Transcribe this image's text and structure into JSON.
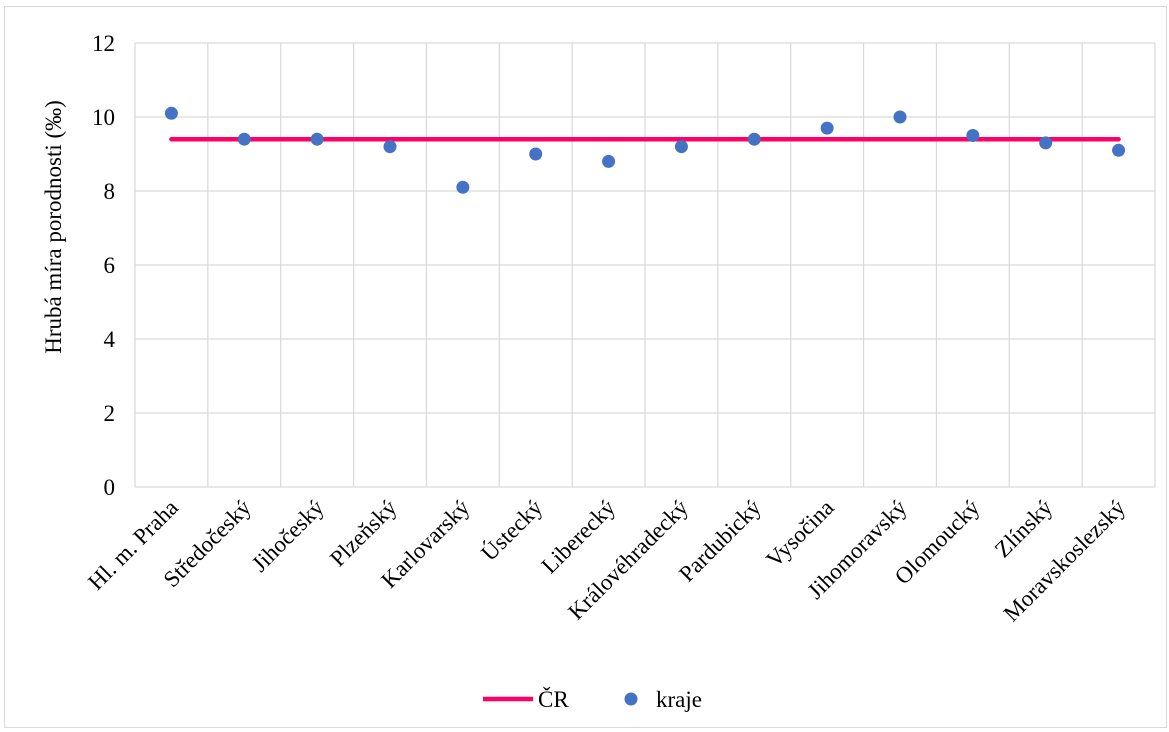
{
  "chart_data": {
    "type": "scatter",
    "categories": [
      "Hl. m. Praha",
      "Středočeský",
      "Jihočeský",
      "Plzeňský",
      "Karlovarský",
      "Ústecký",
      "Liberecký",
      "Královéhradecký",
      "Pardubický",
      "Vysočina",
      "Jihomoravský",
      "Olomoucký",
      "Zlínský",
      "Moravskoslezský"
    ],
    "series": [
      {
        "name": "ČR",
        "kind": "line",
        "color": "#ff0066",
        "values": [
          9.4,
          9.4,
          9.4,
          9.4,
          9.4,
          9.4,
          9.4,
          9.4,
          9.4,
          9.4,
          9.4,
          9.4,
          9.4,
          9.4
        ]
      },
      {
        "name": "kraje",
        "kind": "scatter",
        "color": "#4472c4",
        "values": [
          10.1,
          9.4,
          9.4,
          9.2,
          8.1,
          9.0,
          8.8,
          9.2,
          9.4,
          9.7,
          10.0,
          9.5,
          9.3,
          9.1
        ]
      }
    ],
    "ylabel": "Hrubá míra porodnosti (‰)",
    "xlabel": "",
    "ylim": [
      0,
      12
    ],
    "yticks": [
      "0",
      "2",
      "4",
      "6",
      "8",
      "10",
      "12"
    ],
    "grid": true,
    "legend_position": "bottom"
  }
}
